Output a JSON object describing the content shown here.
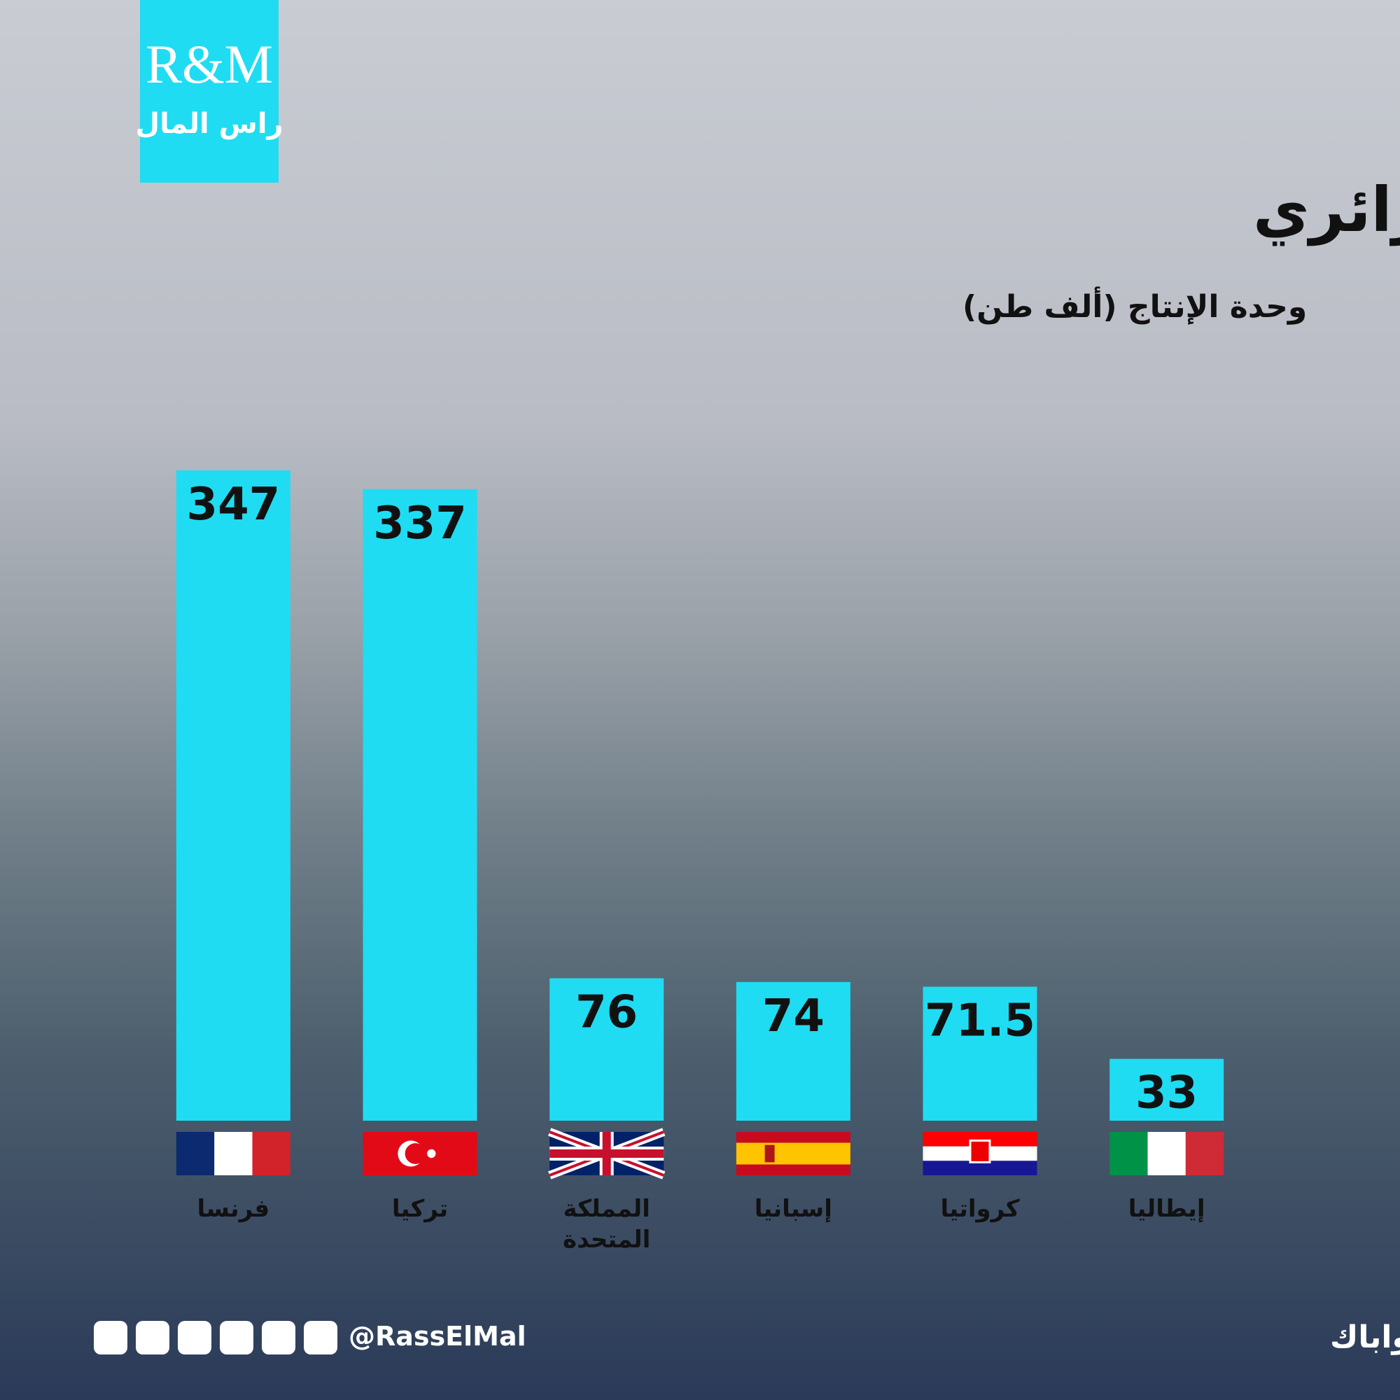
{
  "logo": {
    "mark": "R&M",
    "name": "راس المال"
  },
  "chart_data": {
    "type": "bar",
    "title": "أكبر مستوردي الغاز المسال الجزائري",
    "subtitle": "وحدة الإنتاج (ألف طن)",
    "categories": [
      "فرنسا",
      "تركيا",
      "المملكة المتحدة",
      "إسبانيا",
      "كرواتيا",
      "إيطاليا"
    ],
    "values": [
      347,
      337,
      76,
      74,
      71.5,
      33
    ],
    "color": "#1fdcf2"
  },
  "footer": {
    "source": "المصدر : وحدة أبحاث الطاقة - أواباك",
    "handle": "@RassElMal"
  }
}
